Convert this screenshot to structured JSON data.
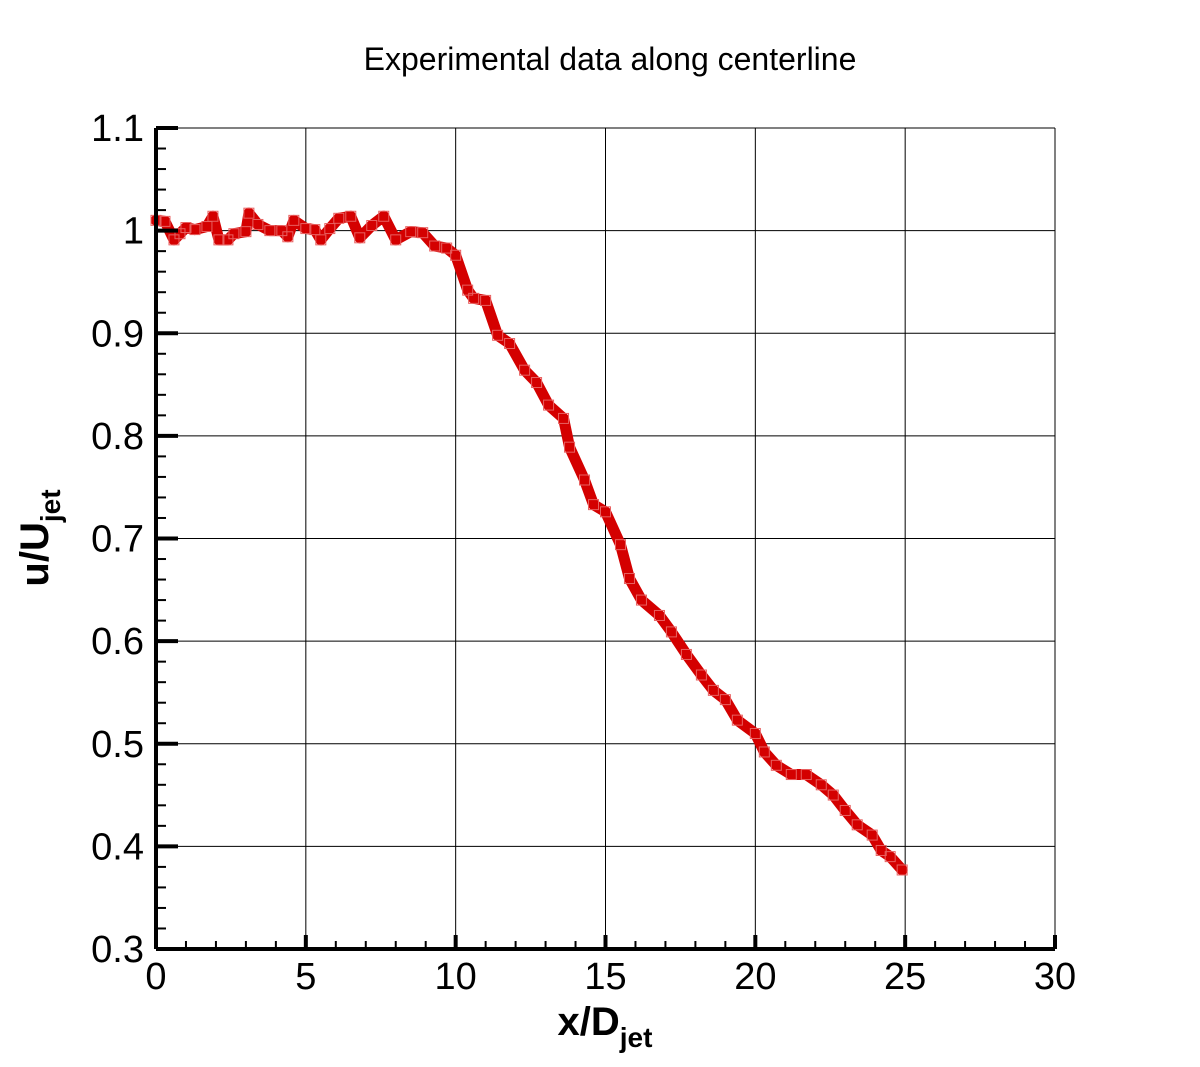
{
  "chart_data": {
    "type": "line",
    "title": "Experimental data along centerline",
    "xlabel": {
      "main": "x/D",
      "sub": "jet"
    },
    "ylabel": {
      "main": "u/U",
      "sub": "jet"
    },
    "xlim": [
      0,
      30
    ],
    "ylim": [
      0.3,
      1.1
    ],
    "xticks": [
      "0",
      "5",
      "10",
      "15",
      "20",
      "25",
      "30"
    ],
    "yticks": [
      "0.3",
      "0.4",
      "0.5",
      "0.6",
      "0.7",
      "0.8",
      "0.9",
      "1",
      "1.1"
    ],
    "grid": true,
    "marker": "square",
    "color": "#d40000",
    "x": [
      0,
      0.3,
      0.6,
      0.8,
      1.0,
      1.3,
      1.7,
      1.9,
      2.1,
      2.4,
      2.6,
      3.0,
      3.1,
      3.4,
      3.8,
      4.2,
      4.4,
      4.6,
      5.0,
      5.3,
      5.5,
      5.8,
      6.1,
      6.5,
      6.8,
      7.2,
      7.6,
      8.0,
      8.5,
      8.9,
      9.3,
      9.7,
      10.0,
      10.4,
      10.6,
      11.0,
      11.4,
      11.8,
      12.3,
      12.7,
      13.1,
      13.6,
      13.8,
      14.3,
      14.6,
      15.0,
      15.5,
      15.8,
      16.2,
      16.8,
      17.2,
      17.7,
      18.2,
      18.6,
      19.0,
      19.4,
      20.0,
      20.3,
      20.7,
      21.2,
      21.7,
      22.2,
      22.6,
      23.0,
      23.4,
      23.9,
      24.2,
      24.5,
      24.9
    ],
    "y": [
      1.01,
      1.009,
      0.991,
      0.997,
      1.003,
      1.001,
      1.004,
      1.014,
      0.991,
      0.991,
      0.997,
      0.999,
      1.017,
      1.006,
      1.0,
      1.0,
      0.994,
      1.01,
      1.002,
      1.001,
      0.991,
      1.002,
      1.012,
      1.014,
      0.993,
      1.005,
      1.014,
      0.991,
      0.999,
      0.998,
      0.985,
      0.983,
      0.976,
      0.942,
      0.934,
      0.932,
      0.898,
      0.89,
      0.864,
      0.852,
      0.83,
      0.817,
      0.789,
      0.757,
      0.733,
      0.726,
      0.694,
      0.661,
      0.64,
      0.625,
      0.609,
      0.587,
      0.567,
      0.552,
      0.543,
      0.523,
      0.51,
      0.492,
      0.479,
      0.47,
      0.47,
      0.46,
      0.45,
      0.435,
      0.421,
      0.411,
      0.396,
      0.39,
      0.377
    ]
  }
}
